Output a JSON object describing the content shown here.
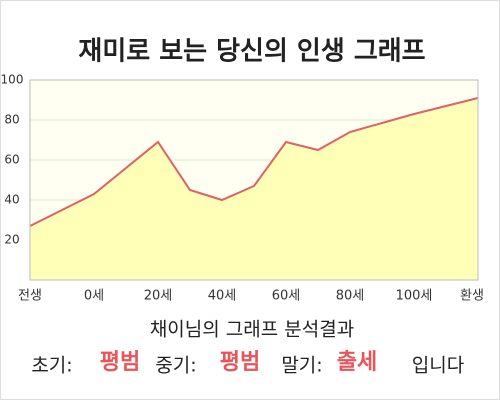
{
  "chart_data": {
    "type": "area",
    "title": "재미로 보는 당신의 인생 그래프",
    "x": [
      -20,
      0,
      20,
      30,
      40,
      50,
      60,
      70,
      80,
      100,
      120
    ],
    "values": [
      27,
      43,
      69,
      45,
      40,
      47,
      69,
      65,
      74,
      83,
      91
    ],
    "color": "#e06068",
    "fill": "#ffffb8",
    "xlim": [
      -20,
      120
    ],
    "xticks": [
      {
        "value": -20,
        "label": "전생"
      },
      {
        "value": 0,
        "label": "0세"
      },
      {
        "value": 20,
        "label": "20세"
      },
      {
        "value": 40,
        "label": "40세"
      },
      {
        "value": 60,
        "label": "60세"
      },
      {
        "value": 80,
        "label": "80세"
      },
      {
        "value": 100,
        "label": "100세"
      },
      {
        "value": 120,
        "label": "환생"
      }
    ],
    "ylim": [
      0,
      100
    ],
    "yticks": [
      20,
      40,
      60,
      80,
      100
    ],
    "grid": true
  },
  "analysis": {
    "title": "채이님의 그래프 분석결과",
    "items": [
      {
        "label": "초기:",
        "value": "평범"
      },
      {
        "label": "중기:",
        "value": "평범"
      },
      {
        "label": "말기:",
        "value": "출세"
      }
    ],
    "suffix": "입니다"
  }
}
